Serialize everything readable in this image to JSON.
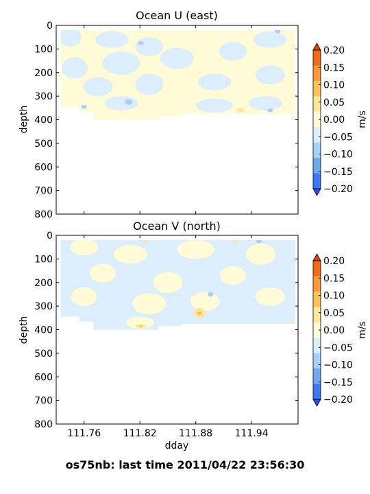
{
  "figure": {
    "suptitle": "os75nb: last time 2011/04/22 23:56:30"
  },
  "colors": {
    "levels": [
      "#2a4bf5",
      "#3f78f2",
      "#6fa9f0",
      "#a9cff6",
      "#dcedfb",
      "#fffbd6",
      "#fde79a",
      "#fcc15b",
      "#f89a3a",
      "#f06a1a",
      "#e53f0c"
    ],
    "bounds": [
      -0.25,
      -0.2,
      -0.15,
      -0.1,
      -0.05,
      0.0,
      0.05,
      0.1,
      0.15,
      0.2,
      0.25
    ]
  },
  "chart_data": [
    {
      "type": "heatmap",
      "title": "Ocean U (east)",
      "ylabel": "depth",
      "xlabel": "",
      "xlim": [
        111.73,
        111.99
      ],
      "ylim": [
        800,
        0
      ],
      "xticks": [
        111.76,
        111.82,
        111.88,
        111.94
      ],
      "xtick_labels": [],
      "yticks": [
        0,
        100,
        200,
        300,
        400,
        500,
        600,
        700,
        800
      ],
      "ytick_labels": [
        "0",
        "100",
        "200",
        "300",
        "400",
        "500",
        "600",
        "700",
        "800"
      ],
      "colorbar": {
        "label": "m/s",
        "ticks": [
          "0.20",
          "0.15",
          "0.10",
          "0.05",
          "0.00",
          "−0.05",
          "−0.10",
          "−0.15",
          "−0.20"
        ]
      },
      "data_extent": {
        "depth_top": 20,
        "coverage": [
          {
            "x0": 111.735,
            "x1": 111.755,
            "depth_bottom": 345
          },
          {
            "x0": 111.755,
            "x1": 111.77,
            "depth_bottom": 365
          },
          {
            "x0": 111.77,
            "x1": 111.84,
            "depth_bottom": 400
          },
          {
            "x0": 111.84,
            "x1": 111.865,
            "depth_bottom": 385
          },
          {
            "x0": 111.865,
            "x1": 111.987,
            "depth_bottom": 375
          }
        ]
      },
      "background_value": 0.02,
      "patches": [
        {
          "x": 111.745,
          "depth": 50,
          "value": -0.025,
          "dx": 0.012,
          "dd": 40
        },
        {
          "x": 111.79,
          "depth": 60,
          "value": -0.02,
          "dx": 0.018,
          "dd": 35
        },
        {
          "x": 111.83,
          "depth": 90,
          "value": -0.025,
          "dx": 0.015,
          "dd": 40
        },
        {
          "x": 111.75,
          "depth": 180,
          "value": -0.03,
          "dx": 0.014,
          "dd": 45
        },
        {
          "x": 111.8,
          "depth": 160,
          "value": -0.025,
          "dx": 0.02,
          "dd": 50
        },
        {
          "x": 111.86,
          "depth": 140,
          "value": -0.02,
          "dx": 0.018,
          "dd": 45
        },
        {
          "x": 111.92,
          "depth": 110,
          "value": -0.025,
          "dx": 0.015,
          "dd": 40
        },
        {
          "x": 111.96,
          "depth": 60,
          "value": -0.02,
          "dx": 0.018,
          "dd": 35
        },
        {
          "x": 111.775,
          "depth": 260,
          "value": -0.03,
          "dx": 0.016,
          "dd": 40
        },
        {
          "x": 111.83,
          "depth": 250,
          "value": -0.025,
          "dx": 0.015,
          "dd": 45
        },
        {
          "x": 111.9,
          "depth": 240,
          "value": -0.025,
          "dx": 0.018,
          "dd": 35
        },
        {
          "x": 111.96,
          "depth": 210,
          "value": -0.02,
          "dx": 0.016,
          "dd": 40
        },
        {
          "x": 111.8,
          "depth": 330,
          "value": -0.03,
          "dx": 0.018,
          "dd": 30
        },
        {
          "x": 111.9,
          "depth": 340,
          "value": -0.025,
          "dx": 0.02,
          "dd": 30
        },
        {
          "x": 111.955,
          "depth": 330,
          "value": -0.02,
          "dx": 0.018,
          "dd": 30
        },
        {
          "x": 111.808,
          "depth": 325,
          "value": -0.07,
          "dx": 0.004,
          "dd": 12
        },
        {
          "x": 111.821,
          "depth": 75,
          "value": -0.06,
          "dx": 0.003,
          "dd": 8
        },
        {
          "x": 111.968,
          "depth": 25,
          "value": -0.06,
          "dx": 0.003,
          "dd": 8
        },
        {
          "x": 111.928,
          "depth": 360,
          "value": 0.06,
          "dx": 0.004,
          "dd": 10
        },
        {
          "x": 111.76,
          "depth": 345,
          "value": -0.06,
          "dx": 0.003,
          "dd": 8
        },
        {
          "x": 111.96,
          "depth": 360,
          "value": -0.06,
          "dx": 0.003,
          "dd": 8
        }
      ]
    },
    {
      "type": "heatmap",
      "title": "Ocean V (north)",
      "ylabel": "depth",
      "xlabel": "dday",
      "xlim": [
        111.73,
        111.99
      ],
      "ylim": [
        800,
        0
      ],
      "xticks": [
        111.76,
        111.82,
        111.88,
        111.94
      ],
      "xtick_labels": [
        "111.76",
        "111.82",
        "111.88",
        "111.94"
      ],
      "yticks": [
        0,
        100,
        200,
        300,
        400,
        500,
        600,
        700,
        800
      ],
      "ytick_labels": [
        "0",
        "100",
        "200",
        "300",
        "400",
        "500",
        "600",
        "700",
        "800"
      ],
      "colorbar": {
        "label": "m/s",
        "ticks": [
          "0.20",
          "0.15",
          "0.10",
          "0.05",
          "0.00",
          "−0.05",
          "−0.10",
          "−0.15",
          "−0.20"
        ]
      },
      "data_extent": {
        "depth_top": 20,
        "coverage": [
          {
            "x0": 111.735,
            "x1": 111.755,
            "depth_bottom": 345
          },
          {
            "x0": 111.755,
            "x1": 111.77,
            "depth_bottom": 365
          },
          {
            "x0": 111.77,
            "x1": 111.84,
            "depth_bottom": 400
          },
          {
            "x0": 111.84,
            "x1": 111.865,
            "depth_bottom": 385
          },
          {
            "x0": 111.865,
            "x1": 111.987,
            "depth_bottom": 375
          }
        ]
      },
      "background_value": -0.02,
      "patches": [
        {
          "x": 111.76,
          "depth": 50,
          "value": 0.025,
          "dx": 0.015,
          "dd": 35
        },
        {
          "x": 111.81,
          "depth": 80,
          "value": 0.02,
          "dx": 0.018,
          "dd": 40
        },
        {
          "x": 111.88,
          "depth": 60,
          "value": 0.025,
          "dx": 0.02,
          "dd": 40
        },
        {
          "x": 111.95,
          "depth": 80,
          "value": 0.02,
          "dx": 0.016,
          "dd": 45
        },
        {
          "x": 111.78,
          "depth": 160,
          "value": 0.025,
          "dx": 0.014,
          "dd": 40
        },
        {
          "x": 111.85,
          "depth": 200,
          "value": 0.02,
          "dx": 0.016,
          "dd": 45
        },
        {
          "x": 111.92,
          "depth": 170,
          "value": 0.025,
          "dx": 0.014,
          "dd": 40
        },
        {
          "x": 111.76,
          "depth": 260,
          "value": 0.02,
          "dx": 0.014,
          "dd": 40
        },
        {
          "x": 111.83,
          "depth": 290,
          "value": 0.025,
          "dx": 0.018,
          "dd": 45
        },
        {
          "x": 111.89,
          "depth": 280,
          "value": 0.025,
          "dx": 0.016,
          "dd": 40
        },
        {
          "x": 111.96,
          "depth": 260,
          "value": 0.02,
          "dx": 0.016,
          "dd": 40
        },
        {
          "x": 111.82,
          "depth": 370,
          "value": 0.025,
          "dx": 0.015,
          "dd": 25
        },
        {
          "x": 111.884,
          "depth": 330,
          "value": 0.08,
          "dx": 0.006,
          "dd": 22
        },
        {
          "x": 111.884,
          "depth": 330,
          "value": 0.12,
          "dx": 0.0025,
          "dd": 8
        },
        {
          "x": 111.821,
          "depth": 385,
          "value": 0.08,
          "dx": 0.006,
          "dd": 8
        },
        {
          "x": 111.821,
          "depth": 385,
          "value": 0.12,
          "dx": 0.002,
          "dd": 4
        },
        {
          "x": 111.826,
          "depth": 25,
          "value": 0.07,
          "dx": 0.002,
          "dd": 8
        },
        {
          "x": 111.922,
          "depth": 25,
          "value": 0.07,
          "dx": 0.002,
          "dd": 8
        },
        {
          "x": 111.948,
          "depth": 25,
          "value": -0.06,
          "dx": 0.003,
          "dd": 8
        },
        {
          "x": 111.896,
          "depth": 250,
          "value": -0.06,
          "dx": 0.003,
          "dd": 10
        }
      ]
    }
  ]
}
